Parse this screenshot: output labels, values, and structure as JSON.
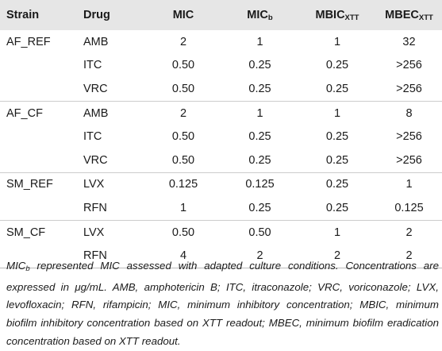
{
  "table": {
    "headers": {
      "strain": "Strain",
      "drug": "Drug",
      "mic": "MIC",
      "micb_main": "MIC",
      "micb_sub": "b",
      "mbic_main": "MBIC",
      "mbic_sub": "XTT",
      "mbec_main": "MBEC",
      "mbec_sub": "XTT"
    },
    "rows": [
      {
        "strain": "AF_REF",
        "drug": "AMB",
        "mic": "2",
        "micb": "1",
        "mbic": "1",
        "mbec": "32"
      },
      {
        "strain": "",
        "drug": "ITC",
        "mic": "0.50",
        "micb": "0.25",
        "mbic": "0.25",
        "mbec": ">256"
      },
      {
        "strain": "",
        "drug": "VRC",
        "mic": "0.50",
        "micb": "0.25",
        "mbic": "0.25",
        "mbec": ">256"
      },
      {
        "strain": "AF_CF",
        "drug": "AMB",
        "mic": "2",
        "micb": "1",
        "mbic": "1",
        "mbec": "8"
      },
      {
        "strain": "",
        "drug": "ITC",
        "mic": "0.50",
        "micb": "0.25",
        "mbic": "0.25",
        "mbec": ">256"
      },
      {
        "strain": "",
        "drug": "VRC",
        "mic": "0.50",
        "micb": "0.25",
        "mbic": "0.25",
        "mbec": ">256"
      },
      {
        "strain": "SM_REF",
        "drug": "LVX",
        "mic": "0.125",
        "micb": "0.125",
        "mbic": "0.25",
        "mbec": "1"
      },
      {
        "strain": "",
        "drug": "RFN",
        "mic": "1",
        "micb": "0.25",
        "mbic": "0.25",
        "mbec": "0.125"
      },
      {
        "strain": "SM_CF",
        "drug": "LVX",
        "mic": "0.50",
        "micb": "0.50",
        "mbic": "1",
        "mbec": "2"
      },
      {
        "strain": "",
        "drug": "RFN",
        "mic": "4",
        "micb": "2",
        "mbic": "2",
        "mbec": "2"
      }
    ]
  },
  "footnote": {
    "mic_main": "MIC",
    "mic_sub": "b",
    "text": " represented MIC assessed with adapted culture conditions. Concentrations are expressed in μg/mL. AMB, amphotericin B; ITC, itraconazole; VRC, voriconazole; LVX, levofloxacin; RFN, rifampicin; MIC, minimum inhibitory concentration; MBIC, minimum biofilm inhibitory concentration based on XTT readout; MBEC, minimum biofilm eradication concentration based on XTT readout."
  }
}
